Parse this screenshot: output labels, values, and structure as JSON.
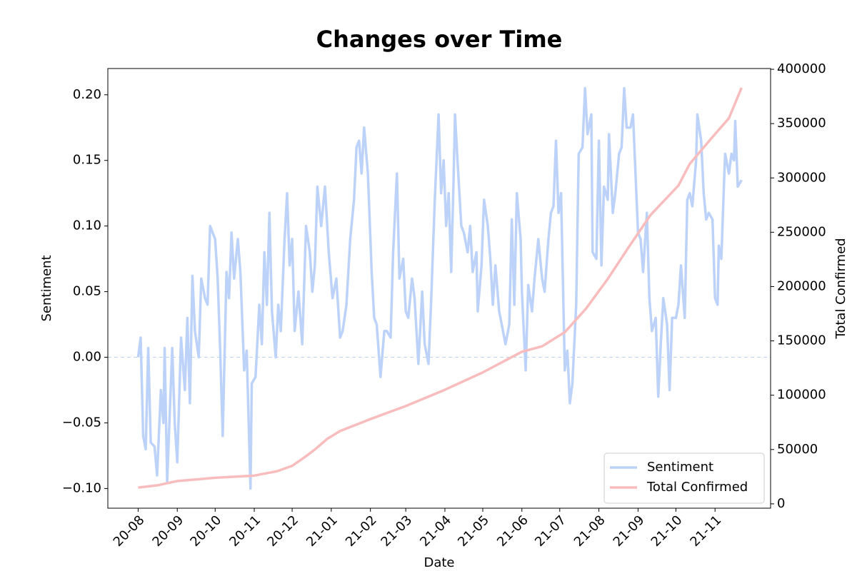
{
  "chart_data": {
    "type": "line",
    "title": "Changes over Time",
    "x_label": "Date",
    "y_label": "Sentiment",
    "y2_label": "Total Confirmed",
    "xlim": [
      -24,
      501
    ],
    "xticks": [
      {
        "value": 0,
        "label": "20-08"
      },
      {
        "value": 31,
        "label": "20-09"
      },
      {
        "value": 61,
        "label": "20-10"
      },
      {
        "value": 92,
        "label": "20-11"
      },
      {
        "value": 122,
        "label": "20-12"
      },
      {
        "value": 153,
        "label": "21-01"
      },
      {
        "value": 184,
        "label": "21-02"
      },
      {
        "value": 212,
        "label": "21-03"
      },
      {
        "value": 243,
        "label": "21-04"
      },
      {
        "value": 273,
        "label": "21-05"
      },
      {
        "value": 304,
        "label": "21-06"
      },
      {
        "value": 334,
        "label": "21-07"
      },
      {
        "value": 365,
        "label": "21-08"
      },
      {
        "value": 396,
        "label": "21-09"
      },
      {
        "value": 426,
        "label": "21-10"
      },
      {
        "value": 457,
        "label": "21-11"
      }
    ],
    "ylim": [
      -0.115,
      0.22
    ],
    "yticks": [
      {
        "value": -0.1,
        "label": "−0.10"
      },
      {
        "value": -0.05,
        "label": "−0.05"
      },
      {
        "value": 0,
        "label": "0.00"
      },
      {
        "value": 0.05,
        "label": "0.05"
      },
      {
        "value": 0.1,
        "label": "0.10"
      },
      {
        "value": 0.15,
        "label": "0.15"
      },
      {
        "value": 0.2,
        "label": "0.20"
      }
    ],
    "y2lim": [
      -4000,
      400700
    ],
    "y2ticks": [
      0,
      50000,
      100000,
      150000,
      200000,
      250000,
      300000,
      350000,
      400000
    ],
    "reference_line": 0,
    "legend": "lower right",
    "series": [
      {
        "name": "Sentiment",
        "color": "#bcd2f8",
        "x": [
          0,
          2,
          4,
          6,
          8,
          10,
          13,
          15,
          18,
          20,
          21,
          23,
          27,
          29,
          31,
          34,
          37,
          39,
          41,
          43,
          45,
          48,
          50,
          53,
          55,
          57,
          61,
          63,
          65,
          67,
          70,
          72,
          74,
          76,
          79,
          81,
          84,
          86,
          89,
          90,
          93,
          96,
          98,
          100,
          102,
          104,
          106,
          109,
          111,
          113,
          116,
          118,
          120,
          122,
          124,
          127,
          130,
          133,
          136,
          138,
          140,
          142,
          145,
          148,
          151,
          154,
          157,
          160,
          162,
          165,
          168,
          171,
          173,
          175,
          177,
          179,
          182,
          185,
          187,
          189,
          192,
          195,
          197,
          200,
          202,
          205,
          207,
          210,
          212,
          214,
          217,
          219,
          222,
          225,
          227,
          230,
          232,
          235,
          238,
          240,
          242,
          244,
          246,
          248,
          250,
          251,
          253,
          256,
          258,
          261,
          263,
          265,
          268,
          269,
          272,
          274,
          277,
          279,
          281,
          283,
          286,
          288,
          291,
          294,
          296,
          298,
          300,
          303,
          304,
          307,
          309,
          312,
          314,
          317,
          320,
          322,
          325,
          327,
          329,
          331,
          333,
          335,
          338,
          340,
          342,
          344,
          347,
          349,
          352,
          354,
          356,
          359,
          360,
          363,
          365,
          367,
          369,
          372,
          373,
          376,
          378,
          381,
          383,
          385,
          387,
          390,
          392,
          394,
          396,
          398,
          400,
          403,
          405,
          407,
          410,
          412,
          414,
          416,
          419,
          421,
          423,
          426,
          428,
          430,
          433,
          435,
          437,
          439,
          442,
          443,
          446,
          448,
          450,
          452,
          455,
          457,
          459,
          460,
          462,
          464,
          465,
          468,
          470,
          472,
          473,
          475,
          478
        ],
        "values": [
          0,
          0.015,
          -0.06,
          -0.07,
          0.007,
          -0.065,
          -0.068,
          -0.09,
          -0.025,
          -0.05,
          0.007,
          -0.095,
          0.007,
          -0.05,
          -0.08,
          0.015,
          -0.025,
          0.03,
          -0.035,
          0.062,
          0.02,
          0,
          0.06,
          0.045,
          0.04,
          0.1,
          0.09,
          0.06,
          0.005,
          -0.06,
          0.065,
          0.045,
          0.095,
          0.06,
          0.09,
          0.065,
          -0.01,
          0.005,
          -0.1,
          -0.02,
          -0.015,
          0.04,
          0.01,
          0.08,
          0.04,
          0.11,
          0.035,
          0,
          0.04,
          0.02,
          0.09,
          0.125,
          0.07,
          0.09,
          0.02,
          0.05,
          0.01,
          0.1,
          0.08,
          0.05,
          0.07,
          0.13,
          0.1,
          0.13,
          0.08,
          0.045,
          0.06,
          0.015,
          0.02,
          0.04,
          0.09,
          0.12,
          0.16,
          0.165,
          0.14,
          0.175,
          0.14,
          0.065,
          0.03,
          0.025,
          -0.015,
          0.02,
          0.02,
          0.015,
          0.08,
          0.14,
          0.06,
          0.075,
          0.035,
          0.03,
          0.06,
          0.045,
          -0.005,
          0.05,
          0.01,
          -0.005,
          0.04,
          0.12,
          0.185,
          0.125,
          0.15,
          0.1,
          0.125,
          0.065,
          0.14,
          0.185,
          0.15,
          0.1,
          0.095,
          0.08,
          0.1,
          0.065,
          0.08,
          0.035,
          0.07,
          0.12,
          0.1,
          0.075,
          0.04,
          0.07,
          0.035,
          0.025,
          0.01,
          0.025,
          0.105,
          0.04,
          0.125,
          0.09,
          0.05,
          -0.01,
          0.055,
          0.035,
          0.06,
          0.09,
          0.06,
          0.05,
          0.09,
          0.11,
          0.115,
          0.165,
          0.11,
          0.125,
          -0.01,
          0.005,
          -0.035,
          -0.02,
          0.04,
          0.155,
          0.16,
          0.205,
          0.17,
          0.185,
          0.08,
          0.075,
          0.165,
          0.07,
          0.13,
          0.12,
          0.17,
          0.11,
          0.125,
          0.155,
          0.16,
          0.205,
          0.175,
          0.175,
          0.185,
          0.14,
          0.095,
          0.09,
          0.065,
          0.11,
          0.045,
          0.02,
          0.03,
          -0.03,
          0.01,
          0.045,
          0.025,
          -0.025,
          0.03,
          0.03,
          0.04,
          0.07,
          0.03,
          0.12,
          0.125,
          0.115,
          0.15,
          0.185,
          0.165,
          0.125,
          0.105,
          0.11,
          0.105,
          0.045,
          0.04,
          0.085,
          0.075,
          0.13,
          0.155,
          0.14,
          0.155,
          0.15,
          0.18,
          0.13,
          0.135
        ]
      },
      {
        "name": "Total Confirmed",
        "color": "#f8bcbc",
        "axis": "y2",
        "x": [
          0,
          15,
          31,
          61,
          92,
          110,
          122,
          132,
          140,
          150,
          160,
          184,
          212,
          243,
          273,
          304,
          320,
          338,
          355,
          372,
          389,
          406,
          428,
          437,
          456,
          468,
          478
        ],
        "values": [
          15000,
          17000,
          21000,
          24000,
          26000,
          30000,
          35000,
          43000,
          50000,
          60000,
          67000,
          78000,
          90000,
          105000,
          121000,
          140000,
          145000,
          158000,
          180000,
          207000,
          237000,
          266000,
          293000,
          313000,
          339000,
          355000,
          383000
        ]
      }
    ]
  }
}
